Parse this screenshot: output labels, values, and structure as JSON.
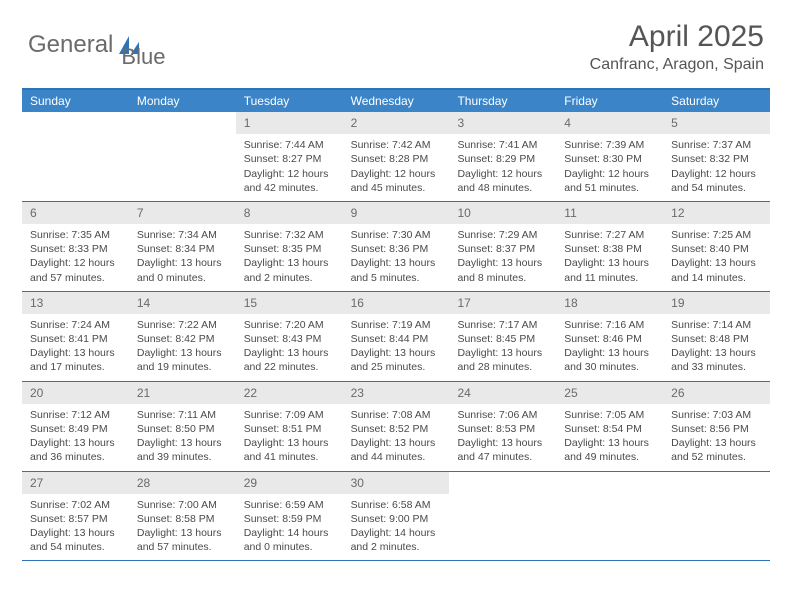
{
  "logo": {
    "text1": "General",
    "text2": "Blue",
    "color_gray": "#7a7a7a",
    "color_blue": "#2f73b6"
  },
  "title": "April 2025",
  "location": "Canfranc, Aragon, Spain",
  "colors": {
    "header_bg": "#3a84c7",
    "border": "#2f73b6",
    "daynum_bg": "#e9e9e9",
    "text": "#4a4a4a"
  },
  "weekdays": [
    "Sunday",
    "Monday",
    "Tuesday",
    "Wednesday",
    "Thursday",
    "Friday",
    "Saturday"
  ],
  "weeks": [
    [
      {
        "n": "",
        "sr": "",
        "ss": "",
        "d1": "",
        "d2": ""
      },
      {
        "n": "",
        "sr": "",
        "ss": "",
        "d1": "",
        "d2": ""
      },
      {
        "n": "1",
        "sr": "Sunrise: 7:44 AM",
        "ss": "Sunset: 8:27 PM",
        "d1": "Daylight: 12 hours",
        "d2": "and 42 minutes."
      },
      {
        "n": "2",
        "sr": "Sunrise: 7:42 AM",
        "ss": "Sunset: 8:28 PM",
        "d1": "Daylight: 12 hours",
        "d2": "and 45 minutes."
      },
      {
        "n": "3",
        "sr": "Sunrise: 7:41 AM",
        "ss": "Sunset: 8:29 PM",
        "d1": "Daylight: 12 hours",
        "d2": "and 48 minutes."
      },
      {
        "n": "4",
        "sr": "Sunrise: 7:39 AM",
        "ss": "Sunset: 8:30 PM",
        "d1": "Daylight: 12 hours",
        "d2": "and 51 minutes."
      },
      {
        "n": "5",
        "sr": "Sunrise: 7:37 AM",
        "ss": "Sunset: 8:32 PM",
        "d1": "Daylight: 12 hours",
        "d2": "and 54 minutes."
      }
    ],
    [
      {
        "n": "6",
        "sr": "Sunrise: 7:35 AM",
        "ss": "Sunset: 8:33 PM",
        "d1": "Daylight: 12 hours",
        "d2": "and 57 minutes."
      },
      {
        "n": "7",
        "sr": "Sunrise: 7:34 AM",
        "ss": "Sunset: 8:34 PM",
        "d1": "Daylight: 13 hours",
        "d2": "and 0 minutes."
      },
      {
        "n": "8",
        "sr": "Sunrise: 7:32 AM",
        "ss": "Sunset: 8:35 PM",
        "d1": "Daylight: 13 hours",
        "d2": "and 2 minutes."
      },
      {
        "n": "9",
        "sr": "Sunrise: 7:30 AM",
        "ss": "Sunset: 8:36 PM",
        "d1": "Daylight: 13 hours",
        "d2": "and 5 minutes."
      },
      {
        "n": "10",
        "sr": "Sunrise: 7:29 AM",
        "ss": "Sunset: 8:37 PM",
        "d1": "Daylight: 13 hours",
        "d2": "and 8 minutes."
      },
      {
        "n": "11",
        "sr": "Sunrise: 7:27 AM",
        "ss": "Sunset: 8:38 PM",
        "d1": "Daylight: 13 hours",
        "d2": "and 11 minutes."
      },
      {
        "n": "12",
        "sr": "Sunrise: 7:25 AM",
        "ss": "Sunset: 8:40 PM",
        "d1": "Daylight: 13 hours",
        "d2": "and 14 minutes."
      }
    ],
    [
      {
        "n": "13",
        "sr": "Sunrise: 7:24 AM",
        "ss": "Sunset: 8:41 PM",
        "d1": "Daylight: 13 hours",
        "d2": "and 17 minutes."
      },
      {
        "n": "14",
        "sr": "Sunrise: 7:22 AM",
        "ss": "Sunset: 8:42 PM",
        "d1": "Daylight: 13 hours",
        "d2": "and 19 minutes."
      },
      {
        "n": "15",
        "sr": "Sunrise: 7:20 AM",
        "ss": "Sunset: 8:43 PM",
        "d1": "Daylight: 13 hours",
        "d2": "and 22 minutes."
      },
      {
        "n": "16",
        "sr": "Sunrise: 7:19 AM",
        "ss": "Sunset: 8:44 PM",
        "d1": "Daylight: 13 hours",
        "d2": "and 25 minutes."
      },
      {
        "n": "17",
        "sr": "Sunrise: 7:17 AM",
        "ss": "Sunset: 8:45 PM",
        "d1": "Daylight: 13 hours",
        "d2": "and 28 minutes."
      },
      {
        "n": "18",
        "sr": "Sunrise: 7:16 AM",
        "ss": "Sunset: 8:46 PM",
        "d1": "Daylight: 13 hours",
        "d2": "and 30 minutes."
      },
      {
        "n": "19",
        "sr": "Sunrise: 7:14 AM",
        "ss": "Sunset: 8:48 PM",
        "d1": "Daylight: 13 hours",
        "d2": "and 33 minutes."
      }
    ],
    [
      {
        "n": "20",
        "sr": "Sunrise: 7:12 AM",
        "ss": "Sunset: 8:49 PM",
        "d1": "Daylight: 13 hours",
        "d2": "and 36 minutes."
      },
      {
        "n": "21",
        "sr": "Sunrise: 7:11 AM",
        "ss": "Sunset: 8:50 PM",
        "d1": "Daylight: 13 hours",
        "d2": "and 39 minutes."
      },
      {
        "n": "22",
        "sr": "Sunrise: 7:09 AM",
        "ss": "Sunset: 8:51 PM",
        "d1": "Daylight: 13 hours",
        "d2": "and 41 minutes."
      },
      {
        "n": "23",
        "sr": "Sunrise: 7:08 AM",
        "ss": "Sunset: 8:52 PM",
        "d1": "Daylight: 13 hours",
        "d2": "and 44 minutes."
      },
      {
        "n": "24",
        "sr": "Sunrise: 7:06 AM",
        "ss": "Sunset: 8:53 PM",
        "d1": "Daylight: 13 hours",
        "d2": "and 47 minutes."
      },
      {
        "n": "25",
        "sr": "Sunrise: 7:05 AM",
        "ss": "Sunset: 8:54 PM",
        "d1": "Daylight: 13 hours",
        "d2": "and 49 minutes."
      },
      {
        "n": "26",
        "sr": "Sunrise: 7:03 AM",
        "ss": "Sunset: 8:56 PM",
        "d1": "Daylight: 13 hours",
        "d2": "and 52 minutes."
      }
    ],
    [
      {
        "n": "27",
        "sr": "Sunrise: 7:02 AM",
        "ss": "Sunset: 8:57 PM",
        "d1": "Daylight: 13 hours",
        "d2": "and 54 minutes."
      },
      {
        "n": "28",
        "sr": "Sunrise: 7:00 AM",
        "ss": "Sunset: 8:58 PM",
        "d1": "Daylight: 13 hours",
        "d2": "and 57 minutes."
      },
      {
        "n": "29",
        "sr": "Sunrise: 6:59 AM",
        "ss": "Sunset: 8:59 PM",
        "d1": "Daylight: 14 hours",
        "d2": "and 0 minutes."
      },
      {
        "n": "30",
        "sr": "Sunrise: 6:58 AM",
        "ss": "Sunset: 9:00 PM",
        "d1": "Daylight: 14 hours",
        "d2": "and 2 minutes."
      },
      {
        "n": "",
        "sr": "",
        "ss": "",
        "d1": "",
        "d2": ""
      },
      {
        "n": "",
        "sr": "",
        "ss": "",
        "d1": "",
        "d2": ""
      },
      {
        "n": "",
        "sr": "",
        "ss": "",
        "d1": "",
        "d2": ""
      }
    ]
  ]
}
